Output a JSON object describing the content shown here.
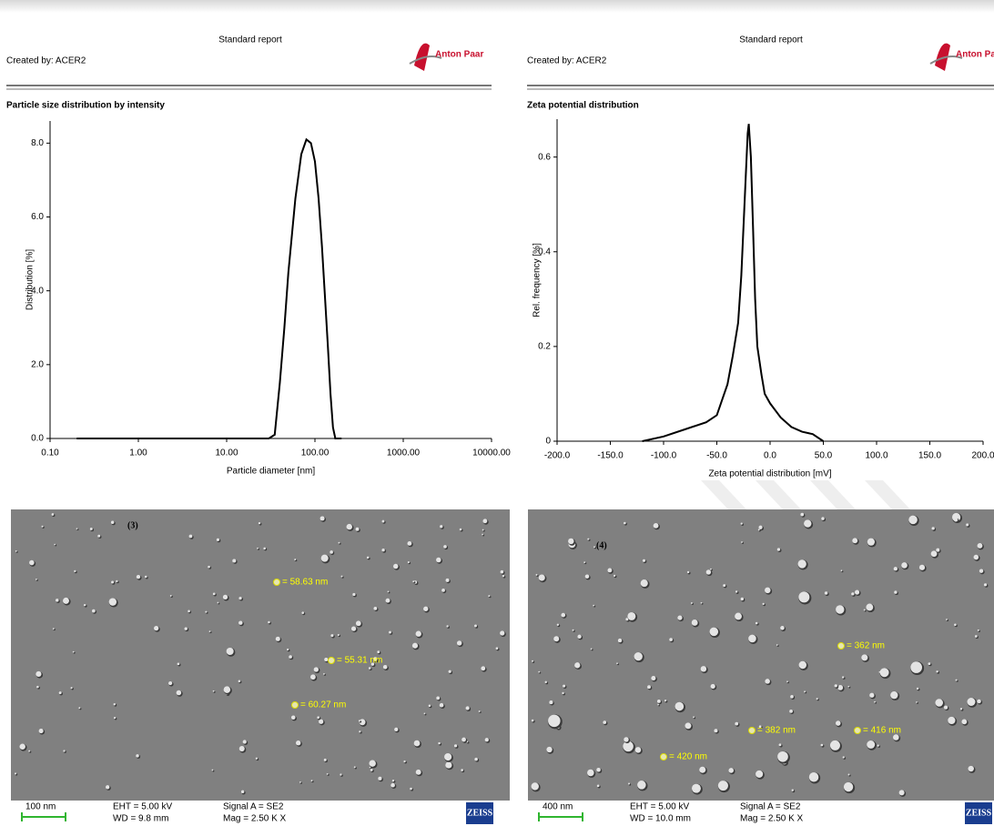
{
  "reports": [
    {
      "header": "Standard report",
      "created_by": "Created by: ACER2",
      "brand": "Anton Paar"
    },
    {
      "header": "Standard report",
      "created_by": "Created by: ACER2",
      "brand": "Anton Paar"
    }
  ],
  "chart_data": [
    {
      "type": "line",
      "title": "Particle size distribution by intensity",
      "x_label": "Particle diameter [nm]",
      "y_label": "Distribution [%]",
      "log_x": true,
      "grid": false,
      "color": "#000000",
      "x": [
        0.2,
        30,
        35,
        40,
        45,
        50,
        60,
        70,
        80,
        90,
        100,
        110,
        120,
        130,
        140,
        150,
        160,
        170,
        200
      ],
      "values": [
        0,
        0,
        0.1,
        1.5,
        3.0,
        4.5,
        6.5,
        7.7,
        8.1,
        8.0,
        7.5,
        6.5,
        5.2,
        3.8,
        2.5,
        1.2,
        0.3,
        0,
        0
      ],
      "xlim": [
        0.1,
        10000
      ],
      "xticks": [
        {
          "value": 0.1,
          "label": "0.10"
        },
        {
          "value": 1,
          "label": "1.00"
        },
        {
          "value": 10,
          "label": "10.00"
        },
        {
          "value": 100,
          "label": "100.00"
        },
        {
          "value": 1000,
          "label": "1000.00"
        },
        {
          "value": 10000,
          "label": "10000.00"
        }
      ],
      "ylim": [
        0,
        8.6
      ],
      "yticks": [
        {
          "value": 0,
          "label": "0.0"
        },
        {
          "value": 2,
          "label": "2.0"
        },
        {
          "value": 4,
          "label": "4.0"
        },
        {
          "value": 6,
          "label": "6.0"
        },
        {
          "value": 8,
          "label": "8.0"
        }
      ]
    },
    {
      "type": "line",
      "title": "Zeta potential distribution",
      "x_label": "Zeta potential distribution [mV]",
      "y_label": "Rel. frequency [%]",
      "log_x": false,
      "grid": false,
      "color": "#000000",
      "x": [
        -120,
        -100,
        -80,
        -60,
        -50,
        -40,
        -35,
        -30,
        -27,
        -24,
        -21,
        -20,
        -18,
        -16,
        -14,
        -12,
        -8,
        -5,
        0,
        10,
        20,
        30,
        40,
        50
      ],
      "values": [
        0,
        0.01,
        0.025,
        0.04,
        0.055,
        0.12,
        0.18,
        0.25,
        0.35,
        0.5,
        0.65,
        0.67,
        0.6,
        0.45,
        0.3,
        0.2,
        0.14,
        0.1,
        0.08,
        0.05,
        0.03,
        0.02,
        0.015,
        0
      ],
      "xlim": [
        -200,
        200
      ],
      "xticks": [
        {
          "value": -200,
          "label": "-200.0"
        },
        {
          "value": -150,
          "label": "-150.0"
        },
        {
          "value": -100,
          "label": "-100.0"
        },
        {
          "value": -50,
          "label": "-50.0"
        },
        {
          "value": 0,
          "label": "0.0"
        },
        {
          "value": 50,
          "label": "50.0"
        },
        {
          "value": 100,
          "label": "100.0"
        },
        {
          "value": 150,
          "label": "150.0"
        },
        {
          "value": 200,
          "label": "200.0"
        }
      ],
      "ylim": [
        0,
        0.68
      ],
      "yticks": [
        0,
        0.2,
        0.4,
        0.6
      ]
    }
  ],
  "sem_images": [
    {
      "label": "(3)",
      "annotations": [
        "= 58.63 nm",
        "= 55.31 nm",
        "= 60.27 nm"
      ],
      "scale_bar": "100 nm",
      "eht": "EHT = 5.00 kV",
      "wd": "WD = 9.8 mm",
      "signal": "Signal A = SE2",
      "mag": "Mag = 2.50 K X",
      "brand": "ZEISS"
    },
    {
      "label": "(4)",
      "annotations": [
        "= 362 nm",
        "= 382 nm",
        "= 416 nm",
        "= 420 nm"
      ],
      "scale_bar": "400 nm",
      "eht": "EHT = 5.00 kV",
      "wd": "WD = 10.0 mm",
      "signal": "Signal A = SE2",
      "mag": "Mag = 2.50 K X",
      "brand": "ZEISS"
    }
  ]
}
